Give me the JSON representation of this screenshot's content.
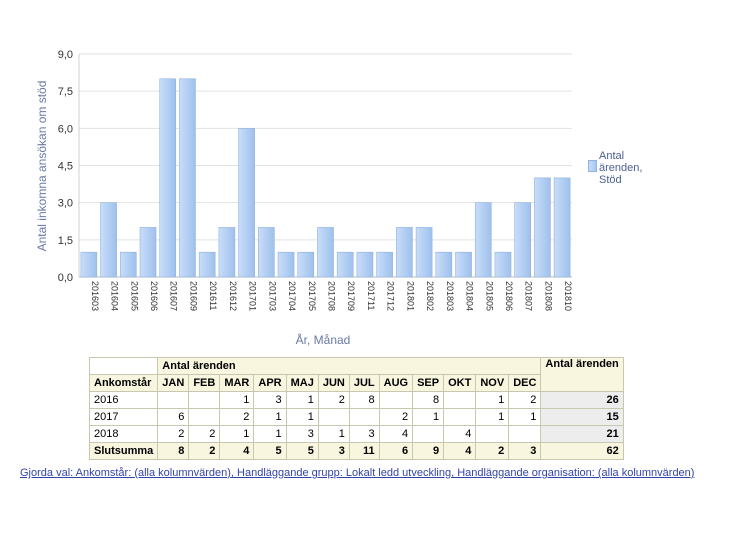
{
  "chart_data": {
    "type": "bar",
    "categories": [
      "201603",
      "201604",
      "201605",
      "201606",
      "201607",
      "201609",
      "201611",
      "201612",
      "201701",
      "201703",
      "201704",
      "201705",
      "201708",
      "201709",
      "201711",
      "201712",
      "201801",
      "201802",
      "201803",
      "201804",
      "201805",
      "201806",
      "201807",
      "201808",
      "201810"
    ],
    "series": [
      {
        "name": "Antal ärenden, Stöd",
        "values": [
          1,
          3,
          1,
          2,
          8,
          8,
          1,
          2,
          6,
          2,
          1,
          1,
          2,
          1,
          1,
          1,
          2,
          2,
          1,
          1,
          3,
          1,
          3,
          4,
          4
        ]
      }
    ],
    "ylim": [
      0,
      9
    ],
    "yticks": [
      "0,0",
      "1,5",
      "3,0",
      "4,5",
      "6,0",
      "7,5",
      "9,0"
    ],
    "ytick_values": [
      0,
      1.5,
      3,
      4.5,
      6,
      7.5,
      9
    ],
    "xlabel": "År, Månad",
    "ylabel": "Antal inkomna ansökan om stöd",
    "grid": true,
    "legend_position": "right",
    "bar_color": "#b0cdf3"
  },
  "legend": {
    "lines": [
      "Antal",
      "ärenden,",
      "Stöd"
    ]
  },
  "table": {
    "group_header": "Antal ärenden",
    "total_header": "Antal ärenden",
    "row_header": "Ankomstår",
    "months": [
      "JAN",
      "FEB",
      "MAR",
      "APR",
      "MAJ",
      "JUN",
      "JUL",
      "AUG",
      "SEP",
      "OKT",
      "NOV",
      "DEC"
    ],
    "rows": [
      {
        "label": "2016",
        "values": [
          "",
          "",
          "1",
          "3",
          "1",
          "2",
          "8",
          "",
          "8",
          "",
          "1",
          "2"
        ],
        "total": "26"
      },
      {
        "label": "2017",
        "values": [
          "6",
          "",
          "2",
          "1",
          "1",
          "",
          "",
          "2",
          "1",
          "",
          "1",
          "1"
        ],
        "total": "15"
      },
      {
        "label": "2018",
        "values": [
          "2",
          "2",
          "1",
          "1",
          "3",
          "1",
          "3",
          "4",
          "",
          "4",
          "",
          ""
        ],
        "total": "21"
      }
    ],
    "sum_label": "Slutsumma",
    "sum_values": [
      "8",
      "2",
      "4",
      "5",
      "5",
      "3",
      "11",
      "6",
      "9",
      "4",
      "2",
      "3"
    ],
    "sum_total": "62"
  },
  "footer": "Gjorda val: Ankomstår: (alla kolumnvärden), Handläggande grupp: Lokalt ledd utveckling, Handläggande organisation: (alla kolumnvärden)"
}
